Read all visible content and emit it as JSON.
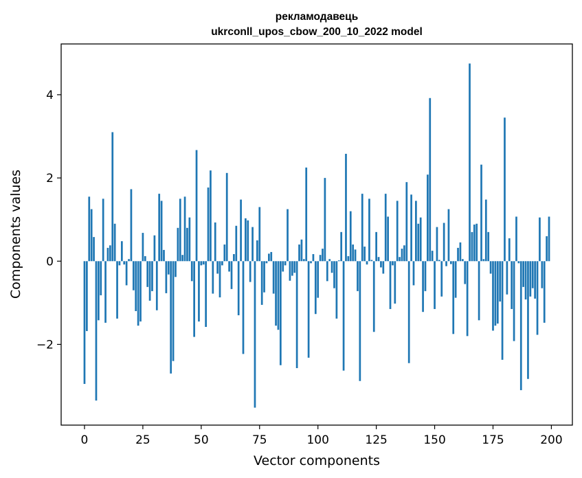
{
  "chart_data": {
    "type": "bar",
    "title": [
      "рекламодавець",
      "ukrconll_upos_cbow_200_10_2022 model"
    ],
    "xlabel": "Vector components",
    "ylabel": "Components values",
    "xlim": [
      -10,
      209
    ],
    "ylim": [
      -3.94,
      5.22
    ],
    "xticks": [
      0,
      25,
      50,
      75,
      100,
      125,
      150,
      175,
      200
    ],
    "xtick_labels": [
      "0",
      "25",
      "50",
      "75",
      "100",
      "125",
      "150",
      "175",
      "200"
    ],
    "yticks": [
      -2,
      0,
      2,
      4
    ],
    "ytick_labels": [
      "−2",
      "0",
      "2",
      "4"
    ],
    "bar_color": "#1f77b4",
    "grid": false,
    "x_start": 0,
    "values": [
      -2.95,
      -1.68,
      1.55,
      1.25,
      0.58,
      -3.35,
      -1.42,
      -0.82,
      1.5,
      -1.48,
      0.32,
      0.38,
      3.1,
      0.9,
      -1.38,
      -0.1,
      0.48,
      -0.08,
      -0.58,
      0.05,
      1.73,
      -0.7,
      -1.2,
      -1.55,
      -1.45,
      0.68,
      0.12,
      -0.62,
      -0.95,
      -0.72,
      0.62,
      -1.18,
      1.62,
      1.45,
      0.27,
      -0.77,
      -0.32,
      -2.7,
      -2.4,
      -0.38,
      0.8,
      1.5,
      0.15,
      1.55,
      0.8,
      1.05,
      -0.48,
      -1.82,
      2.67,
      -1.45,
      -0.1,
      -0.08,
      -1.58,
      1.77,
      2.18,
      -0.78,
      0.93,
      -0.3,
      -0.87,
      -0.1,
      0.4,
      2.12,
      -0.25,
      -0.67,
      0.17,
      0.85,
      -1.3,
      1.48,
      -2.23,
      1.03,
      0.98,
      -0.5,
      0.82,
      -3.52,
      0.5,
      1.3,
      -1.05,
      -0.75,
      -0.05,
      0.18,
      0.22,
      -0.78,
      -1.55,
      -1.65,
      -2.5,
      -0.25,
      -0.1,
      1.25,
      -0.47,
      -0.35,
      -0.28,
      -2.57,
      0.4,
      0.52,
      0.05,
      2.25,
      -2.32,
      -0.05,
      0.17,
      -1.27,
      -0.88,
      0.15,
      0.3,
      2.0,
      -0.48,
      0.05,
      -0.28,
      -0.65,
      -1.38,
      0.02,
      0.7,
      -2.63,
      2.58,
      0.12,
      1.2,
      0.4,
      0.28,
      -0.72,
      -2.88,
      1.62,
      0.35,
      -0.08,
      1.5,
      0.03,
      -1.7,
      0.7,
      0.1,
      -0.15,
      -0.3,
      1.62,
      1.07,
      -1.15,
      -0.1,
      -1.02,
      1.45,
      0.1,
      0.3,
      0.38,
      1.9,
      -2.45,
      1.6,
      -0.58,
      1.45,
      0.9,
      1.05,
      -1.22,
      -0.72,
      2.08,
      3.92,
      0.25,
      -1.15,
      0.82,
      0.03,
      -0.85,
      0.92,
      -0.12,
      1.25,
      -0.07,
      -1.75,
      -0.88,
      0.32,
      0.45,
      0.05,
      -0.55,
      -1.8,
      4.75,
      0.7,
      0.88,
      0.9,
      -1.42,
      2.32,
      0.05,
      1.48,
      0.7,
      -0.3,
      -1.67,
      -1.55,
      -1.5,
      -0.97,
      -2.37,
      3.45,
      -0.8,
      0.55,
      -1.15,
      -1.92,
      1.07,
      -0.05,
      -3.1,
      -0.62,
      -0.92,
      -2.83,
      -0.85,
      -0.65,
      -0.9,
      -1.77,
      1.05,
      -0.65,
      -1.48,
      0.6,
      1.07
    ]
  }
}
